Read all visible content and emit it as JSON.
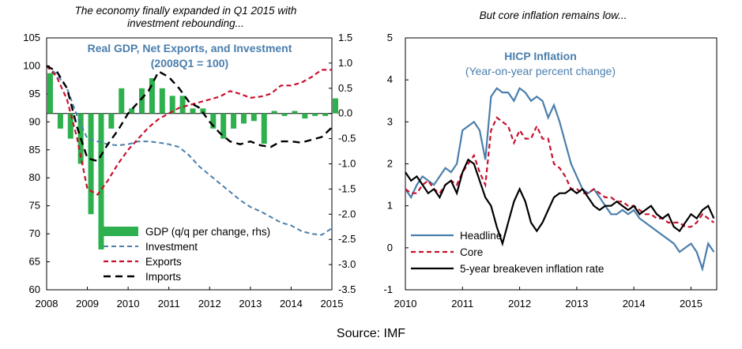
{
  "left_panel_title": "The economy finally expanded in Q1 2015 with investment rebounding...",
  "right_panel_title": "But core inflation remains low...",
  "source": "Source: IMF",
  "chart_data": [
    {
      "type": "bar+line",
      "title": "Real  GDP, Net Exports, and Investment",
      "subtitle": "(2008Q1 = 100)",
      "x_ticks": [
        "2008",
        "2009",
        "2010",
        "2011",
        "2012",
        "2013",
        "2014",
        "2015"
      ],
      "y_left_ticks": [
        "105",
        "100",
        "95",
        "90",
        "85",
        "80",
        "75",
        "70",
        "65",
        "60"
      ],
      "y_left_range": [
        60,
        105
      ],
      "y_right_ticks": [
        "1.5",
        "1.0",
        "0.5",
        "0.0",
        "-0.5",
        "-1.0",
        "-1.5",
        "-2.0",
        "-2.5",
        "-3.0",
        "-3.5"
      ],
      "y_right_range": [
        -3.5,
        1.5
      ],
      "colors": {
        "gdp": "#2db04d",
        "investment": "#4a7ead",
        "exports": "#c8102e",
        "imports": "#000000"
      },
      "legend": [
        "GDP (q/q per change, rhs)",
        "Investment",
        "Exports",
        "Imports"
      ],
      "gdp_bars": {
        "x": [
          2008.0,
          2008.25,
          2008.5,
          2008.75,
          2009.0,
          2009.25,
          2009.5,
          2009.75,
          2010.0,
          2010.25,
          2010.5,
          2010.75,
          2011.0,
          2011.25,
          2011.5,
          2011.75,
          2012.0,
          2012.25,
          2012.5,
          2012.75,
          2013.0,
          2013.25,
          2013.5,
          2013.75,
          2014.0,
          2014.25,
          2014.5,
          2014.75,
          2015.0
        ],
        "values": [
          0.8,
          -0.3,
          -0.5,
          -1.0,
          -2.0,
          -2.7,
          -0.3,
          0.5,
          0.1,
          0.5,
          0.7,
          0.5,
          0.35,
          0.35,
          0.1,
          0.1,
          -0.3,
          -0.5,
          -0.3,
          -0.2,
          -0.15,
          -0.6,
          0.05,
          -0.05,
          0.05,
          -0.1,
          -0.05,
          -0.05,
          0.3
        ]
      },
      "series": [
        {
          "name": "Investment",
          "x": [
            2008.0,
            2008.25,
            2008.5,
            2008.75,
            2009.0,
            2009.25,
            2009.5,
            2009.75,
            2010.0,
            2010.25,
            2010.5,
            2010.75,
            2011.0,
            2011.25,
            2011.5,
            2011.75,
            2012.0,
            2012.25,
            2012.5,
            2012.75,
            2013.0,
            2013.25,
            2013.5,
            2013.75,
            2014.0,
            2014.25,
            2014.5,
            2014.75,
            2015.0
          ],
          "values": [
            100,
            98.5,
            96,
            91,
            87,
            86.5,
            86,
            85.8,
            86,
            86.5,
            86.5,
            86.3,
            86,
            85.5,
            84,
            82,
            80.5,
            79,
            77.5,
            76,
            74.8,
            74,
            73,
            72,
            71.5,
            70.5,
            70,
            69.8,
            71
          ]
        },
        {
          "name": "Exports",
          "x": [
            2008.0,
            2008.25,
            2008.5,
            2008.75,
            2009.0,
            2009.25,
            2009.5,
            2009.75,
            2010.0,
            2010.25,
            2010.5,
            2010.75,
            2011.0,
            2011.25,
            2011.5,
            2011.75,
            2012.0,
            2012.25,
            2012.5,
            2012.75,
            2013.0,
            2013.25,
            2013.5,
            2013.75,
            2014.0,
            2014.25,
            2014.5,
            2014.75,
            2015.0
          ],
          "values": [
            100,
            98,
            94,
            87,
            78,
            77,
            79.5,
            82.5,
            85,
            87,
            89,
            90.5,
            91.5,
            92.5,
            93,
            93.5,
            94,
            94.5,
            95.5,
            95,
            94.3,
            94.5,
            95,
            96.5,
            96.5,
            97,
            98,
            99.3,
            99.3
          ]
        },
        {
          "name": "Imports",
          "x": [
            2008.0,
            2008.25,
            2008.5,
            2008.75,
            2009.0,
            2009.25,
            2009.5,
            2009.75,
            2010.0,
            2010.25,
            2010.5,
            2010.75,
            2011.0,
            2011.25,
            2011.5,
            2011.75,
            2012.0,
            2012.25,
            2012.5,
            2012.75,
            2013.0,
            2013.25,
            2013.5,
            2013.75,
            2014.0,
            2014.25,
            2014.5,
            2014.75,
            2015.0
          ],
          "values": [
            100,
            99,
            96,
            89,
            83.5,
            83,
            86,
            88.5,
            91.5,
            93.5,
            95.5,
            99,
            98,
            96,
            93.5,
            92.5,
            90,
            88,
            86.5,
            86,
            86.5,
            85.8,
            85.5,
            86.5,
            86.5,
            86.3,
            86.8,
            87.3,
            89
          ]
        }
      ]
    },
    {
      "type": "line",
      "title": "HICP Inflation",
      "subtitle": "(Year-on-year percent change)",
      "x_ticks": [
        "2010",
        "2011",
        "2012",
        "2013",
        "2014",
        "2015"
      ],
      "y_ticks": [
        "5",
        "4",
        "3",
        "2",
        "1",
        "0",
        "-1"
      ],
      "y_range": [
        -1,
        5
      ],
      "x_range": [
        2010,
        2015.45
      ],
      "colors": {
        "headline": "#4a7ead",
        "core": "#c8102e",
        "breakeven": "#000000"
      },
      "legend": [
        "Headline",
        "Core",
        "5-year breakeven inflation rate"
      ],
      "series": [
        {
          "name": "Headline",
          "x": [
            2010.0,
            2010.1,
            2010.2,
            2010.3,
            2010.4,
            2010.5,
            2010.6,
            2010.7,
            2010.8,
            2010.9,
            2011.0,
            2011.1,
            2011.2,
            2011.3,
            2011.4,
            2011.5,
            2011.6,
            2011.7,
            2011.8,
            2011.9,
            2012.0,
            2012.1,
            2012.2,
            2012.3,
            2012.4,
            2012.5,
            2012.6,
            2012.7,
            2012.8,
            2012.9,
            2013.0,
            2013.1,
            2013.2,
            2013.3,
            2013.4,
            2013.5,
            2013.6,
            2013.7,
            2013.8,
            2013.9,
            2014.0,
            2014.1,
            2014.2,
            2014.3,
            2014.4,
            2014.5,
            2014.6,
            2014.7,
            2014.8,
            2014.9,
            2015.0,
            2015.1,
            2015.2,
            2015.3,
            2015.4
          ],
          "values": [
            1.4,
            1.2,
            1.5,
            1.7,
            1.6,
            1.5,
            1.7,
            1.9,
            1.8,
            2.0,
            2.8,
            2.9,
            3.0,
            2.8,
            2.1,
            3.6,
            3.8,
            3.7,
            3.7,
            3.5,
            3.8,
            3.7,
            3.5,
            3.6,
            3.5,
            3.1,
            3.4,
            3.0,
            2.5,
            2.0,
            1.7,
            1.4,
            1.3,
            1.4,
            1.2,
            1.0,
            0.8,
            0.8,
            0.9,
            0.8,
            0.9,
            0.7,
            0.6,
            0.5,
            0.4,
            0.3,
            0.2,
            0.1,
            -0.1,
            0.0,
            0.1,
            -0.1,
            -0.5,
            0.1,
            -0.1
          ]
        },
        {
          "name": "Core",
          "x": [
            2010.0,
            2010.1,
            2010.2,
            2010.3,
            2010.4,
            2010.5,
            2010.6,
            2010.7,
            2010.8,
            2010.9,
            2011.0,
            2011.1,
            2011.2,
            2011.3,
            2011.4,
            2011.5,
            2011.6,
            2011.7,
            2011.8,
            2011.9,
            2012.0,
            2012.1,
            2012.2,
            2012.3,
            2012.4,
            2012.5,
            2012.6,
            2012.7,
            2012.8,
            2012.9,
            2013.0,
            2013.1,
            2013.2,
            2013.3,
            2013.4,
            2013.5,
            2013.6,
            2013.7,
            2013.8,
            2013.9,
            2014.0,
            2014.1,
            2014.2,
            2014.3,
            2014.4,
            2014.5,
            2014.6,
            2014.7,
            2014.8,
            2014.9,
            2015.0,
            2015.1,
            2015.2,
            2015.3,
            2015.4
          ],
          "values": [
            1.4,
            1.3,
            1.3,
            1.5,
            1.6,
            1.4,
            1.3,
            1.5,
            1.6,
            1.5,
            1.8,
            2.0,
            2.2,
            1.8,
            1.5,
            2.8,
            3.1,
            3.0,
            2.9,
            2.5,
            2.8,
            2.6,
            2.6,
            2.9,
            2.6,
            2.6,
            2.0,
            1.9,
            1.7,
            1.4,
            1.4,
            1.3,
            1.3,
            1.4,
            1.3,
            1.2,
            1.2,
            1.1,
            1.1,
            1.0,
            1.0,
            0.9,
            0.8,
            0.8,
            0.7,
            0.7,
            0.6,
            0.6,
            0.6,
            0.5,
            0.5,
            0.6,
            0.8,
            0.7,
            0.6
          ]
        },
        {
          "name": "5-year breakeven inflation rate",
          "x": [
            2010.0,
            2010.1,
            2010.2,
            2010.3,
            2010.4,
            2010.5,
            2010.6,
            2010.7,
            2010.8,
            2010.9,
            2011.0,
            2011.1,
            2011.2,
            2011.3,
            2011.4,
            2011.5,
            2011.6,
            2011.7,
            2011.8,
            2011.9,
            2012.0,
            2012.1,
            2012.2,
            2012.3,
            2012.4,
            2012.5,
            2012.6,
            2012.7,
            2012.8,
            2012.9,
            2013.0,
            2013.1,
            2013.2,
            2013.3,
            2013.4,
            2013.5,
            2013.6,
            2013.7,
            2013.8,
            2013.9,
            2014.0,
            2014.1,
            2014.2,
            2014.3,
            2014.4,
            2014.5,
            2014.6,
            2014.7,
            2014.8,
            2014.9,
            2015.0,
            2015.1,
            2015.2,
            2015.3,
            2015.4
          ],
          "values": [
            1.8,
            1.6,
            1.7,
            1.5,
            1.3,
            1.4,
            1.2,
            1.5,
            1.6,
            1.3,
            1.8,
            2.1,
            2.0,
            1.6,
            1.2,
            1.0,
            0.5,
            0.1,
            0.6,
            1.1,
            1.4,
            1.1,
            0.6,
            0.4,
            0.6,
            0.9,
            1.2,
            1.3,
            1.3,
            1.4,
            1.3,
            1.4,
            1.2,
            1.0,
            0.9,
            1.0,
            1.0,
            1.1,
            1.0,
            0.9,
            1.0,
            0.8,
            0.9,
            1.0,
            0.8,
            0.7,
            0.8,
            0.5,
            0.4,
            0.6,
            0.8,
            0.7,
            0.9,
            1.0,
            0.7
          ]
        }
      ]
    }
  ]
}
